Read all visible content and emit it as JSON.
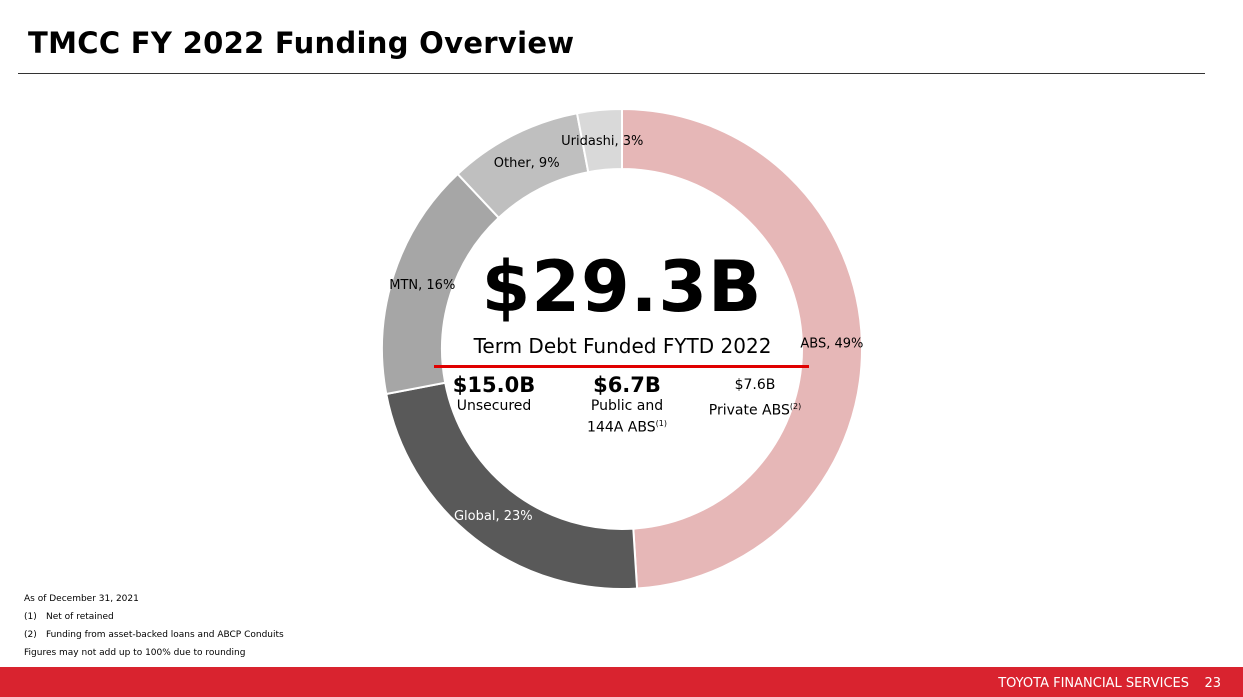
{
  "title": "TMCC FY 2022 Funding Overview",
  "chart_data": {
    "type": "pie",
    "style": "donut",
    "start": "top, clockwise",
    "slices": [
      {
        "label": "ABS",
        "value": 49,
        "display": "ABS, 49%",
        "color": "#e6b7b7"
      },
      {
        "label": "Global",
        "value": 23,
        "display": "Global, 23%",
        "color": "#595959"
      },
      {
        "label": "MTN",
        "value": 16,
        "display": "MTN, 16%",
        "color": "#a6a6a6"
      },
      {
        "label": "Other",
        "value": 9,
        "display": "Other, 9%",
        "color": "#bfbfbf"
      },
      {
        "label": "Uridashi",
        "value": 3,
        "display": "Uridashi, 3%",
        "color": "#d9d9d9"
      }
    ],
    "label_colors": {
      "ABS": "#000000",
      "Global": "#ffffff",
      "MTN": "#000000",
      "Other": "#000000",
      "Uridashi": "#000000"
    }
  },
  "center": {
    "total": "$29.3B",
    "subtitle": "Term Debt Funded FYTD 2022",
    "accent": "#e00000",
    "breakdown": [
      {
        "value": "$15.0B",
        "label": "Unsecured",
        "sup": ""
      },
      {
        "value": "$6.7B",
        "label": "Public and 144A ABS",
        "sup": "(1)"
      },
      {
        "value": "$7.6B",
        "label": "Private ABS",
        "sup": "(2)"
      }
    ]
  },
  "notes": {
    "asof": "As of December 31, 2021",
    "items": [
      {
        "num": "(1)",
        "text": "Net of retained"
      },
      {
        "num": "(2)",
        "text": "Funding from asset-backed loans and ABCP Conduits"
      }
    ],
    "rounding": "Figures may not add up to 100% due to rounding"
  },
  "footer": {
    "brand": "TOYOTA FINANCIAL SERVICES",
    "page": "23",
    "color": "#d9232f"
  }
}
